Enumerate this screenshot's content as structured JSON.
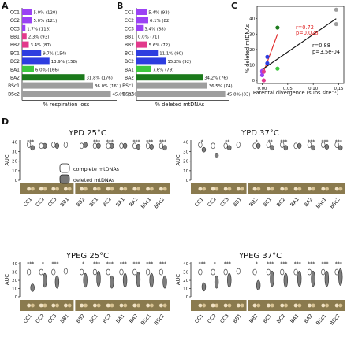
{
  "panels": {
    "A": {
      "letter": "A",
      "xlabel": "% respiration loss"
    },
    "B": {
      "letter": "B",
      "xlabel": "% deleted mtDNAs"
    },
    "C": {
      "letter": "C",
      "ylabel": "% deleted mtDNAs",
      "xlabel": "Parental divergence (subs site⁻¹)",
      "stat_red_r": "r=0.72",
      "stat_red_p": "p=0.028",
      "stat_black_r": "r=0.88",
      "stat_black_p": "p=3.5e-04"
    },
    "D": {
      "letter": "D"
    }
  },
  "legend": {
    "complete": "complete mtDNAs",
    "deleted": "deleted mtDNAs"
  },
  "chart_data": [
    {
      "type": "bar",
      "orientation": "horizontal",
      "panel": "A",
      "categories": [
        "CC1",
        "CC2",
        "CC3",
        "BB1",
        "BB2",
        "BC1",
        "BC2",
        "BA1",
        "BA2",
        "BSc1",
        "BSc2"
      ],
      "values": [
        5.0,
        5.0,
        1.7,
        2.3,
        3.4,
        9.7,
        13.9,
        6.0,
        31.8,
        36.0,
        45.0
      ],
      "labels": [
        "5.0% (120)",
        "5.0% (121)",
        "1.7% (118)",
        "2.3% (93)",
        "3.4% (87)",
        "9.7% (154)",
        "13.9% (158)",
        "6.0% (166)",
        "31.8% (176)",
        "36.0% (161)",
        "45.0% (160)"
      ],
      "colors": [
        "#9b42f4",
        "#9b42f4",
        "#9b42f4",
        "#e23a8c",
        "#e23a8c",
        "#2d3de0",
        "#2d3de0",
        "#3ec83e",
        "#1b7a1b",
        "#9e9e9e",
        "#9e9e9e"
      ],
      "xlabel": "% respiration loss",
      "xlim": [
        0,
        48
      ]
    },
    {
      "type": "bar",
      "orientation": "horizontal",
      "panel": "B",
      "categories": [
        "CC1",
        "CC2",
        "CC3",
        "BB1",
        "BB2",
        "BC1",
        "BC2",
        "BA1",
        "BA2",
        "BSc1",
        "BSc2"
      ],
      "values": [
        5.4,
        6.1,
        3.4,
        0.0,
        5.6,
        11.1,
        15.2,
        7.6,
        34.2,
        36.5,
        45.8
      ],
      "labels": [
        "5.4% (93)",
        "6.1% (82)",
        "3.4% (88)",
        "0.0% (71)",
        "5.6% (72)",
        "11.1% (90)",
        "15.2% (92)",
        "7.6% (79)",
        "34.2% (76)",
        "36.5% (74)",
        "45.8% (83)"
      ],
      "colors": [
        "#9b42f4",
        "#9b42f4",
        "#9b42f4",
        "#e23a8c",
        "#e23a8c",
        "#2d3de0",
        "#2d3de0",
        "#3ec83e",
        "#1b7a1b",
        "#9e9e9e",
        "#9e9e9e"
      ],
      "xlabel": "% deleted mtDNAs",
      "xlim": [
        0,
        48
      ]
    },
    {
      "type": "scatter",
      "panel": "C",
      "x": [
        0.0,
        0.0,
        0.0,
        0.003,
        0.003,
        0.01,
        0.01,
        0.03,
        0.03,
        0.145,
        0.145
      ],
      "y": [
        5.4,
        6.1,
        3.4,
        0.0,
        5.6,
        11.1,
        15.2,
        7.6,
        34.2,
        36.5,
        45.8
      ],
      "colors": [
        "#9b42f4",
        "#9b42f4",
        "#9b42f4",
        "#e23a8c",
        "#e23a8c",
        "#2d3de0",
        "#2d3de0",
        "#3ec83e",
        "#1b7a1b",
        "#9e9e9e",
        "#9e9e9e"
      ],
      "fits": [
        {
          "color": "#e02020",
          "x": [
            0.0,
            0.03
          ],
          "y": [
            3.0,
            30.0
          ]
        },
        {
          "color": "#111111",
          "x": [
            0.0,
            0.145
          ],
          "y": [
            7.0,
            40.0
          ]
        }
      ],
      "xlabel": "Parental divergence (subs site⁻¹)",
      "ylabel": "% deleted mtDNAs",
      "xlim": [
        -0.01,
        0.16
      ],
      "ylim": [
        -2,
        48
      ],
      "xticks": [
        "0.00",
        "0.05",
        "0.10",
        "0.15"
      ],
      "yticks": [
        "0",
        "10",
        "20",
        "30",
        "40"
      ]
    },
    {
      "type": "violin",
      "panel": "D",
      "ylabel": "AUC",
      "ylim": [
        0,
        42
      ],
      "yticks": [
        "0",
        "10",
        "20",
        "30",
        "40"
      ],
      "groups_left": [
        "CC1",
        "CC2",
        "CC3",
        "BB1"
      ],
      "groups_right": [
        "BB2",
        "BC1",
        "BC2",
        "BA1",
        "BA2",
        "BSc1",
        "BSc2"
      ],
      "subpanels": [
        {
          "title": "YPD 25°C",
          "stars": [
            "***",
            "",
            "",
            "",
            "",
            "***",
            "***",
            "",
            "***",
            "***",
            "***"
          ],
          "complete": [
            37,
            36,
            37,
            37,
            36,
            36,
            36,
            36,
            36,
            36,
            36
          ],
          "deleted": [
            34,
            36,
            36,
            null,
            37,
            36,
            36,
            36,
            35,
            35,
            34
          ]
        },
        {
          "title": "YPD 37°C",
          "stars": [
            "*",
            "",
            "**",
            "",
            "*",
            "**",
            "***",
            "",
            "***",
            "***",
            "***"
          ],
          "complete": [
            37,
            36,
            36,
            37,
            36,
            37,
            37,
            36,
            37,
            37,
            37
          ],
          "deleted": [
            32,
            26,
            34,
            null,
            36,
            34,
            34,
            36,
            34,
            35,
            34
          ]
        },
        {
          "title": "YPEG 25°C",
          "stars": [
            "***",
            "*",
            "***",
            "",
            "*",
            "***",
            "***",
            "***",
            "***",
            "***",
            "***"
          ],
          "complete": [
            30,
            30,
            30,
            31,
            30,
            30,
            30,
            30,
            30,
            30,
            30
          ],
          "deleted": [
            11,
            20,
            18,
            null,
            20,
            22,
            18,
            20,
            21,
            20,
            18
          ]
        },
        {
          "title": "YPEG 37°C",
          "stars": [
            "***",
            "*",
            "***",
            "",
            "*",
            "***",
            "***",
            "***",
            "***",
            "***",
            "***"
          ],
          "complete": [
            30,
            30,
            30,
            31,
            30,
            30,
            30,
            30,
            30,
            30,
            30
          ],
          "deleted": [
            12,
            18,
            20,
            null,
            14,
            22,
            20,
            22,
            22,
            22,
            24
          ]
        }
      ]
    }
  ]
}
